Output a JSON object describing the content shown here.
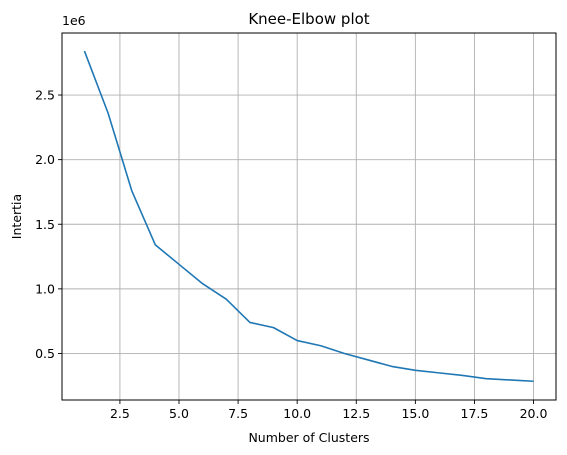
{
  "chart_data": {
    "type": "line",
    "title": "Knee-Elbow plot",
    "xlabel": "Number of Clusters",
    "ylabel": "Intertia",
    "y_offset_label": "1e6",
    "xlim": [
      0.05,
      20.95
    ],
    "ylim": [
      140000,
      2980000
    ],
    "x_ticks": [
      2.5,
      5.0,
      7.5,
      10.0,
      12.5,
      15.0,
      17.5,
      20.0
    ],
    "x_tick_labels": [
      "2.5",
      "5.0",
      "7.5",
      "10.0",
      "12.5",
      "15.0",
      "17.5",
      "20.0"
    ],
    "y_ticks": [
      500000,
      1000000,
      1500000,
      2000000,
      2500000
    ],
    "y_tick_labels": [
      "0.5",
      "1.0",
      "1.5",
      "2.0",
      "2.5"
    ],
    "grid": true,
    "series": [
      {
        "color": "#1f77b4",
        "x": [
          1,
          2,
          3,
          4,
          5,
          6,
          7,
          8,
          9,
          10,
          11,
          12,
          13,
          14,
          15,
          16,
          17,
          18,
          19,
          20
        ],
        "y": [
          2840000,
          2360000,
          1760000,
          1340000,
          1190000,
          1040000,
          920000,
          740000,
          700000,
          600000,
          560000,
          500000,
          450000,
          400000,
          370000,
          350000,
          330000,
          305000,
          295000,
          285000
        ]
      }
    ]
  }
}
